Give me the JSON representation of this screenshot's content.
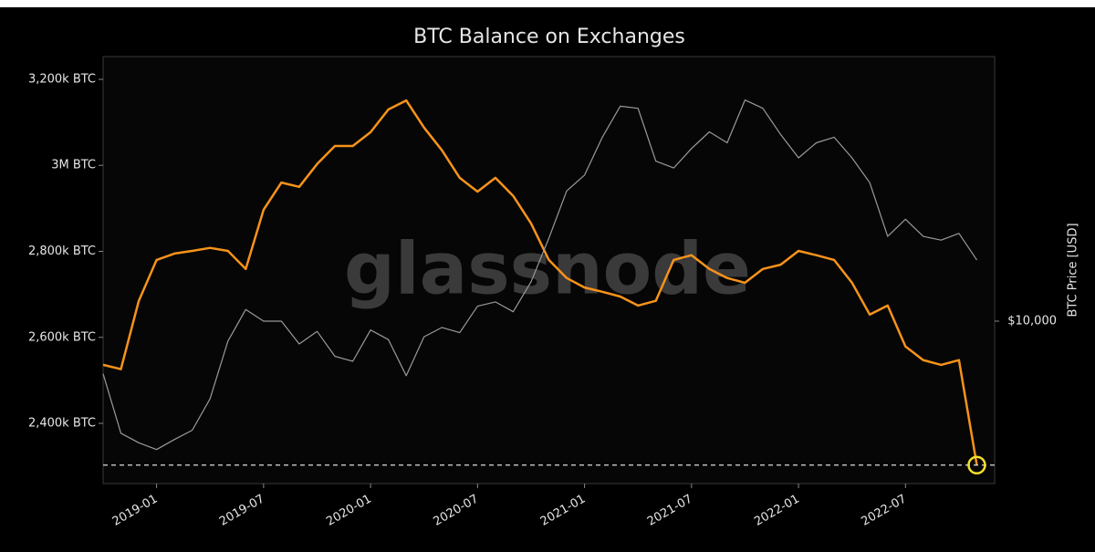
{
  "chart_data": {
    "type": "line",
    "title": "BTC Balance on Exchanges",
    "watermark": "glassnode",
    "y2_label": "BTC Price [USD]",
    "x": [
      "2018-10",
      "2018-11",
      "2018-12",
      "2019-01",
      "2019-02",
      "2019-03",
      "2019-04",
      "2019-05",
      "2019-06",
      "2019-07",
      "2019-08",
      "2019-09",
      "2019-10",
      "2019-11",
      "2019-12",
      "2020-01",
      "2020-02",
      "2020-03",
      "2020-04",
      "2020-05",
      "2020-06",
      "2020-07",
      "2020-08",
      "2020-09",
      "2020-10",
      "2020-11",
      "2020-12",
      "2021-01",
      "2021-02",
      "2021-03",
      "2021-04",
      "2021-05",
      "2021-06",
      "2021-07",
      "2021-08",
      "2021-09",
      "2021-10",
      "2021-11",
      "2021-12",
      "2022-01",
      "2022-02",
      "2022-03",
      "2022-04",
      "2022-05",
      "2022-06",
      "2022-07",
      "2022-08",
      "2022-09",
      "2022-10",
      "2022-11"
    ],
    "xlim": [
      "2018-10",
      "2022-12"
    ],
    "xticks": [
      "2019-01",
      "2019-07",
      "2020-01",
      "2020-07",
      "2021-01",
      "2021-07",
      "2022-01",
      "2022-07"
    ],
    "ylim": [
      2260000,
      3253000
    ],
    "yticks": [
      {
        "value": 2400000,
        "label": "2,400k BTC"
      },
      {
        "value": 2600000,
        "label": "2,600k BTC"
      },
      {
        "value": 2800000,
        "label": "2,800k BTC"
      },
      {
        "value": 3000000,
        "label": "3M BTC"
      },
      {
        "value": 3200000,
        "label": "3,200k BTC"
      }
    ],
    "y2lim": [
      2650,
      87000
    ],
    "y2log": true,
    "y2ticks": [
      {
        "value": 10000,
        "label": "$10,000"
      }
    ],
    "series": [
      {
        "name": "BTC Balance on Exchanges",
        "color": "#f7931a",
        "axis": "y",
        "values": [
          2536000,
          2526000,
          2685000,
          2780000,
          2795000,
          2801000,
          2808000,
          2801000,
          2759000,
          2897000,
          2960000,
          2950000,
          3003000,
          3045000,
          3045000,
          3077000,
          3130000,
          3151000,
          3088000,
          3035000,
          2971000,
          2939000,
          2971000,
          2929000,
          2865000,
          2780000,
          2738000,
          2716000,
          2706000,
          2695000,
          2674000,
          2685000,
          2780000,
          2791000,
          2759000,
          2738000,
          2727000,
          2759000,
          2769000,
          2801000,
          2791000,
          2780000,
          2727000,
          2653000,
          2674000,
          2579000,
          2547000,
          2536000,
          2547000,
          2303000
        ]
      },
      {
        "name": "BTC Price",
        "color": "#9a9a9a",
        "axis": "y2",
        "values": [
          6500,
          4000,
          3700,
          3500,
          3800,
          4100,
          5300,
          8500,
          11000,
          10000,
          10000,
          8300,
          9200,
          7500,
          7200,
          9300,
          8600,
          6400,
          8800,
          9500,
          9100,
          11300,
          11700,
          10800,
          13800,
          19700,
          29000,
          33000,
          45000,
          58000,
          57000,
          37000,
          35000,
          41000,
          47000,
          43000,
          61000,
          57000,
          46000,
          38000,
          43000,
          45000,
          38000,
          31000,
          20000,
          23000,
          20000,
          19400,
          20500,
          16500
        ]
      }
    ]
  }
}
